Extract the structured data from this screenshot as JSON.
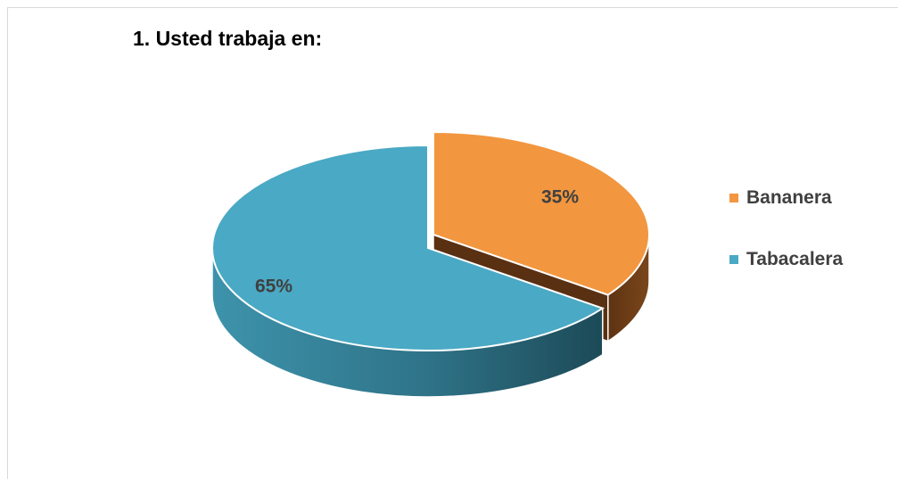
{
  "chart_data": {
    "type": "pie",
    "title": "1. Usted trabaja en:",
    "categories": [
      "Bananera",
      "Tabacalera"
    ],
    "values": [
      35,
      65
    ],
    "data_labels": [
      "35%",
      "65%"
    ],
    "colors": [
      "#f2963f",
      "#4aa9c4"
    ],
    "side_colors": [
      "#6b3d17",
      "#2f7a90"
    ],
    "legend_position": "right",
    "style": "3d-exploded"
  }
}
